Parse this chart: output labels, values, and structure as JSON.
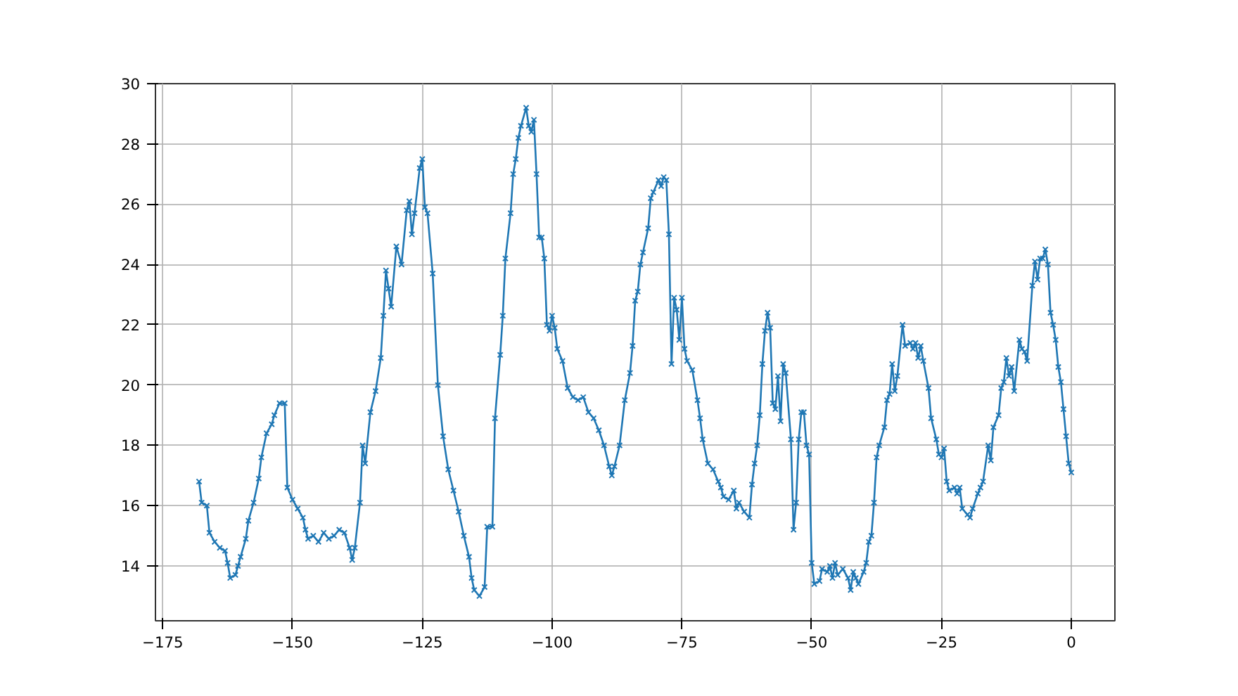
{
  "chart_data": {
    "type": "line",
    "marker": "cross",
    "line_style": "solid",
    "grid": true,
    "xlim": [
      -176.4,
      8.4
    ],
    "ylim": [
      12.18,
      30
    ],
    "xticks": [
      -175,
      -150,
      -125,
      -100,
      -75,
      -50,
      -25,
      0
    ],
    "yticks": [
      14,
      16,
      18,
      20,
      22,
      24,
      26,
      28,
      30
    ],
    "series": [
      {
        "color": "#1f77b4",
        "x": [
          -168,
          -167.5,
          -166.5,
          -166,
          -165,
          -164,
          -163,
          -162.5,
          -162,
          -161,
          -160.5,
          -160,
          -159,
          -158.5,
          -157.5,
          -156.5,
          -156,
          -155,
          -154,
          -153.5,
          -152.5,
          -151.5,
          -151,
          -150,
          -149,
          -148,
          -147.5,
          -147,
          -146,
          -145,
          -144,
          -143,
          -142,
          -141,
          -140,
          -139,
          -138.5,
          -138,
          -137,
          -136.5,
          -136,
          -135,
          -134,
          -133,
          -132.5,
          -132,
          -131.5,
          -131,
          -130,
          -129,
          -128,
          -127.5,
          -127,
          -126.5,
          -125.5,
          -125,
          -124.5,
          -124,
          -123,
          -122,
          -121,
          -120,
          -119,
          -118,
          -117,
          -116,
          -115.5,
          -115,
          -114,
          -113,
          -112.5,
          -111.5,
          -111,
          -110,
          -109.5,
          -109,
          -108,
          -107.5,
          -107,
          -106.5,
          -106,
          -105,
          -104.5,
          -104,
          -103.5,
          -103,
          -102.5,
          -102,
          -101.5,
          -101,
          -100.5,
          -100,
          -99.5,
          -99,
          -98,
          -97,
          -96,
          -95,
          -94,
          -93,
          -92,
          -91,
          -90,
          -89,
          -88.5,
          -88,
          -87,
          -86,
          -85,
          -84.5,
          -84,
          -83.5,
          -83,
          -82.5,
          -81.5,
          -81,
          -80.5,
          -79.5,
          -79,
          -78.5,
          -78,
          -77.5,
          -77,
          -76.5,
          -76,
          -75.5,
          -75,
          -74.5,
          -74,
          -73,
          -72,
          -71.5,
          -71,
          -70,
          -69,
          -68,
          -67.5,
          -67,
          -66,
          -65,
          -64.5,
          -64,
          -63,
          -62,
          -61.5,
          -61,
          -60.5,
          -60,
          -59.5,
          -59,
          -58.5,
          -58,
          -57.5,
          -57,
          -56.5,
          -56,
          -55.5,
          -55,
          -54,
          -53.5,
          -53,
          -52.5,
          -52,
          -51.5,
          -51,
          -50.5,
          -50,
          -49.5,
          -48.5,
          -48,
          -47,
          -46.5,
          -46,
          -45.5,
          -45,
          -44,
          -43,
          -42.5,
          -42,
          -41.5,
          -41,
          -40,
          -39.5,
          -39,
          -38.5,
          -38,
          -37.5,
          -37,
          -36,
          -35.5,
          -35,
          -34.5,
          -34,
          -33.5,
          -32.5,
          -32,
          -31,
          -30.5,
          -30,
          -29.5,
          -29,
          -28.5,
          -27.5,
          -27,
          -26,
          -25.5,
          -25,
          -24.5,
          -24,
          -23.5,
          -22.5,
          -22,
          -21.5,
          -21,
          -20,
          -19.5,
          -19,
          -18,
          -17.5,
          -17,
          -16,
          -15.5,
          -15,
          -14,
          -13.5,
          -13,
          -12.5,
          -12,
          -11.5,
          -11,
          -10,
          -9.5,
          -9,
          -8.5,
          -7.5,
          -7,
          -6.5,
          -6,
          -5.5,
          -5,
          -4.5,
          -4,
          -3.5,
          -3,
          -2.5,
          -2,
          -1.5,
          -1,
          -0.5,
          0
        ],
        "values": [
          16.8,
          16.1,
          16.0,
          15.1,
          14.8,
          14.6,
          14.5,
          14.1,
          13.6,
          13.7,
          14.0,
          14.3,
          14.9,
          15.5,
          16.1,
          16.9,
          17.6,
          18.4,
          18.7,
          19.0,
          19.4,
          19.4,
          16.6,
          16.2,
          15.9,
          15.6,
          15.2,
          14.9,
          15.0,
          14.8,
          15.1,
          14.9,
          15.0,
          15.2,
          15.1,
          14.6,
          14.2,
          14.6,
          16.1,
          18.0,
          17.4,
          19.1,
          19.8,
          20.9,
          22.3,
          23.8,
          23.2,
          22.6,
          24.6,
          24.0,
          25.8,
          26.1,
          25.0,
          25.7,
          27.2,
          27.5,
          25.9,
          25.7,
          23.7,
          20.0,
          18.3,
          17.2,
          16.5,
          15.8,
          15.0,
          14.3,
          13.6,
          13.2,
          13.0,
          13.3,
          15.3,
          15.3,
          18.9,
          21.0,
          22.3,
          24.2,
          25.7,
          27.0,
          27.5,
          28.2,
          28.6,
          29.2,
          28.6,
          28.4,
          28.8,
          27.0,
          24.9,
          24.9,
          24.2,
          22.0,
          21.8,
          22.3,
          21.9,
          21.2,
          20.8,
          19.9,
          19.6,
          19.5,
          19.6,
          19.1,
          18.9,
          18.5,
          18.0,
          17.3,
          17.0,
          17.3,
          18.0,
          19.5,
          20.4,
          21.3,
          22.8,
          23.1,
          24.0,
          24.4,
          25.2,
          26.2,
          26.4,
          26.8,
          26.6,
          26.9,
          26.8,
          25.0,
          20.7,
          22.9,
          22.5,
          21.5,
          22.9,
          21.2,
          20.8,
          20.5,
          19.5,
          18.9,
          18.2,
          17.4,
          17.2,
          16.8,
          16.6,
          16.3,
          16.2,
          16.5,
          15.9,
          16.1,
          15.8,
          15.6,
          16.7,
          17.4,
          18.0,
          19.0,
          20.7,
          21.8,
          22.4,
          21.9,
          19.4,
          19.2,
          20.3,
          18.8,
          20.7,
          20.4,
          18.2,
          15.2,
          16.1,
          18.2,
          19.1,
          19.1,
          18.0,
          17.7,
          14.1,
          13.4,
          13.5,
          13.9,
          13.8,
          14.0,
          13.6,
          14.1,
          13.7,
          13.9,
          13.6,
          13.2,
          13.8,
          13.6,
          13.4,
          13.8,
          14.1,
          14.8,
          15.0,
          16.1,
          17.6,
          18.0,
          18.6,
          19.5,
          19.7,
          20.7,
          19.8,
          20.3,
          22.0,
          21.3,
          21.4,
          21.2,
          21.4,
          20.9,
          21.3,
          20.8,
          19.9,
          18.9,
          18.2,
          17.7,
          17.6,
          17.9,
          16.8,
          16.5,
          16.6,
          16.4,
          16.6,
          15.9,
          15.7,
          15.6,
          15.9,
          16.4,
          16.6,
          16.8,
          18.0,
          17.5,
          18.6,
          19.0,
          19.9,
          20.1,
          20.9,
          20.3,
          20.6,
          19.8,
          21.5,
          21.2,
          21.1,
          20.8,
          23.3,
          24.1,
          23.5,
          24.2,
          24.2,
          24.5,
          24.0,
          22.4,
          22.0,
          21.5,
          20.6,
          20.1,
          19.2,
          18.3,
          17.4,
          17.1
        ]
      }
    ]
  }
}
